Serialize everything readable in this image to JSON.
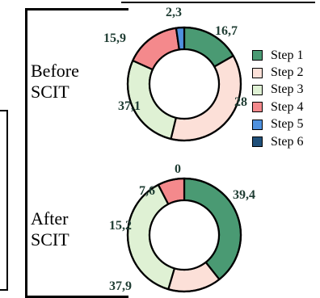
{
  "chart_data": [
    {
      "type": "pie",
      "title": "Before\nSCIT",
      "categories": [
        "Step 1",
        "Step 2",
        "Step 3",
        "Step 4",
        "Step 5",
        "Step 6"
      ],
      "values": [
        16.7,
        37.1,
        28,
        15.9,
        2.3,
        0
      ],
      "value_labels": [
        "16,7",
        "37,1",
        "28",
        "15,9",
        "2,3",
        ""
      ]
    },
    {
      "type": "pie",
      "title": "After\nSCIT",
      "categories": [
        "Step 1",
        "Step 2",
        "Step 3",
        "Step 4",
        "Step 5",
        "Step 6"
      ],
      "values": [
        39.4,
        15.2,
        37.9,
        7.6,
        0,
        0
      ],
      "value_labels": [
        "39,4",
        "15,2",
        "37,9",
        "7,6",
        "0",
        ""
      ]
    }
  ],
  "rows": [
    {
      "line1": "Before",
      "line2": "SCIT"
    },
    {
      "line1": "After",
      "line2": "SCIT"
    }
  ],
  "legend": {
    "items": [
      {
        "label": "Step 1",
        "color": "#4a9a73"
      },
      {
        "label": "Step 2",
        "color": "#fce0d8"
      },
      {
        "label": "Step 3",
        "color": "#dff1d4"
      },
      {
        "label": "Step 4",
        "color": "#f4898c"
      },
      {
        "label": "Step 5",
        "color": "#4f91de"
      },
      {
        "label": "Step 6",
        "color": "#20507a"
      }
    ],
    "placement": "right"
  }
}
